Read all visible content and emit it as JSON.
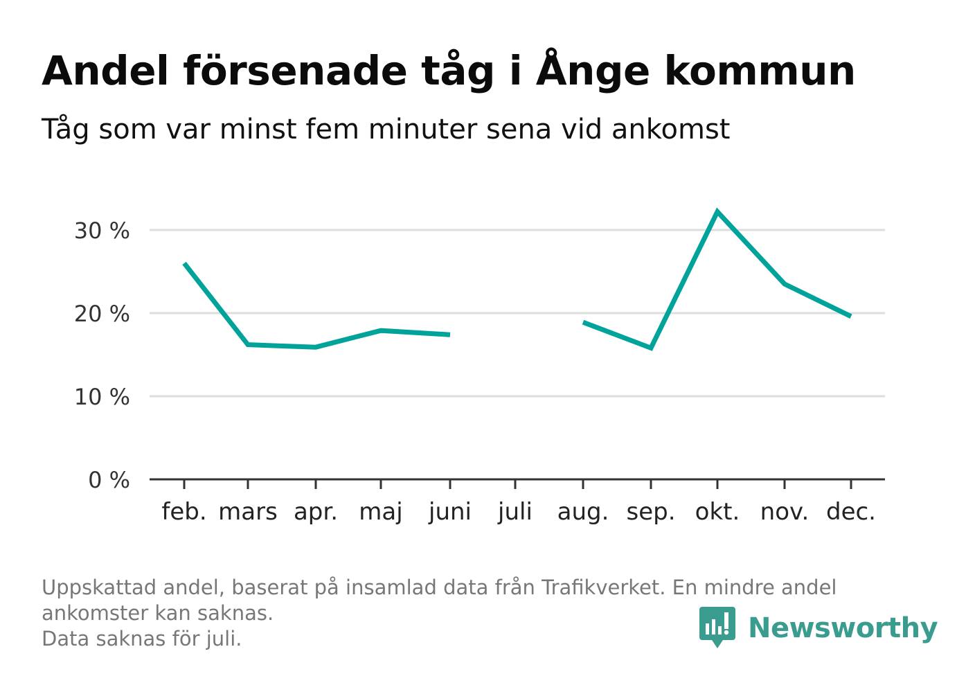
{
  "header": {
    "title": "Andel försenade tåg i Ånge kommun",
    "subtitle": "Tåg som var minst fem minuter sena vid ankomst"
  },
  "chart_data": {
    "type": "line",
    "categories": [
      "feb.",
      "mars",
      "apr.",
      "maj",
      "juni",
      "juli",
      "aug.",
      "sep.",
      "okt.",
      "nov.",
      "dec."
    ],
    "series": [
      {
        "values": [
          26.0,
          16.2,
          15.9,
          17.9,
          17.4,
          null,
          18.9,
          15.8,
          32.2,
          23.5,
          19.6
        ]
      }
    ],
    "y_ticks": [
      0,
      10,
      20,
      30
    ],
    "y_tick_labels": [
      "0 %",
      "10 %",
      "20 %",
      "30 %"
    ],
    "ylim": [
      0,
      33
    ],
    "grid": true,
    "line_color": "#00a39a"
  },
  "footer": {
    "note_lines": [
      "Uppskattad andel, baserat på insamlad data från Trafikverket. En mindre andel",
      "ankomster kan saknas.",
      "Data saknas för juli."
    ],
    "brand": "Newsworthy",
    "brand_color": "#3a9b8f"
  }
}
